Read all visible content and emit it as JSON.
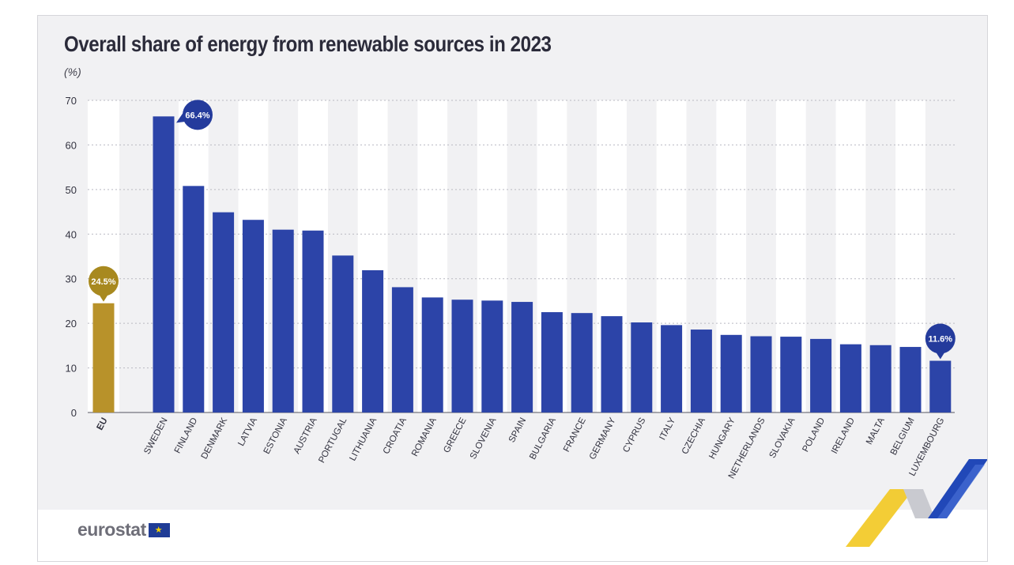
{
  "header": {
    "title": "Overall share of energy from renewable sources in 2023",
    "unit": "(%)"
  },
  "footer": {
    "logo_text": "eurostat"
  },
  "colors": {
    "eu_bar": "#b8922a",
    "country_bar": "#2c44a8",
    "callout_blue": "#243b9c",
    "callout_gold": "#a8891f",
    "stripe": "#ffffff",
    "background": "#f1f1f3"
  },
  "chart_data": {
    "type": "bar",
    "title": "Overall share of energy from renewable sources in 2023",
    "ylabel": "(%)",
    "ylim": [
      0,
      70
    ],
    "yticks": [
      0,
      10,
      20,
      30,
      40,
      50,
      60,
      70
    ],
    "grid": true,
    "categories": [
      "EU",
      "SWEDEN",
      "FINLAND",
      "DENMARK",
      "LATVIA",
      "ESTONIA",
      "AUSTRIA",
      "PORTUGAL",
      "LITHUANIA",
      "CROATIA",
      "ROMANIA",
      "GREECE",
      "SLOVENIA",
      "SPAIN",
      "BULGARIA",
      "FRANCE",
      "GERMANY",
      "CYPRUS",
      "ITALY",
      "CZECHIA",
      "HUNGARY",
      "NETHERLANDS",
      "SLOVAKIA",
      "POLAND",
      "IRELAND",
      "MALTA",
      "BELGIUM",
      "LUXEMBOURG"
    ],
    "values": [
      24.5,
      66.4,
      50.8,
      44.9,
      43.2,
      41.0,
      40.8,
      35.2,
      31.9,
      28.1,
      25.8,
      25.3,
      25.1,
      24.8,
      22.5,
      22.3,
      21.6,
      20.2,
      19.6,
      18.6,
      17.4,
      17.1,
      17.0,
      16.5,
      15.3,
      15.1,
      14.7,
      11.6
    ],
    "callouts": [
      {
        "category": "EU",
        "label": "24.5%"
      },
      {
        "category": "SWEDEN",
        "label": "66.4%"
      },
      {
        "category": "LUXEMBOURG",
        "label": "11.6%"
      }
    ]
  }
}
